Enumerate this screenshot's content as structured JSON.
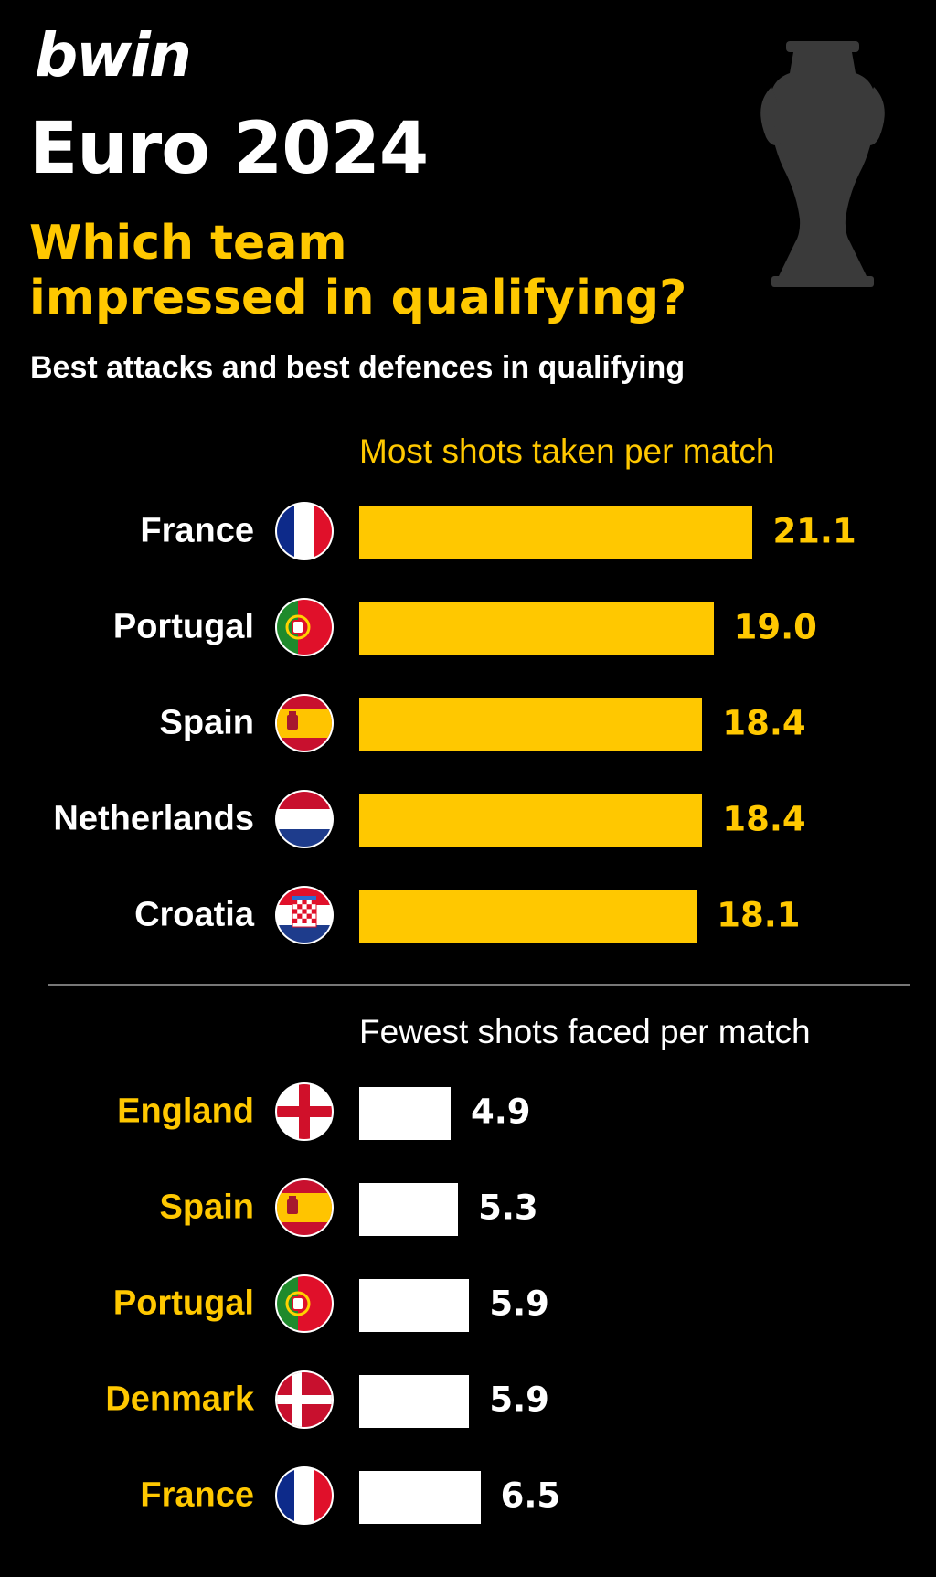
{
  "brand": {
    "logo": "bwin"
  },
  "header": {
    "title": "Euro 2024",
    "subtitle_line1": "Which team",
    "subtitle_line2": "impressed in qualifying?",
    "tagline": "Best attacks and best defences in qualifying"
  },
  "colors": {
    "accent": "#ffc800",
    "background": "#000000",
    "text": "#ffffff",
    "divider": "#777777"
  },
  "chart_data": [
    {
      "type": "bar",
      "orientation": "horizontal",
      "title": "Most shots taken per match",
      "categories": [
        "France",
        "Portugal",
        "Spain",
        "Netherlands",
        "Croatia"
      ],
      "value_labels": [
        "21.1",
        "19.0",
        "18.4",
        "18.4",
        "18.1"
      ],
      "values": [
        21.1,
        19.0,
        18.4,
        18.4,
        18.1
      ],
      "flags": [
        "france-flag-icon",
        "portugal-flag-icon",
        "spain-flag-icon",
        "netherlands-flag-icon",
        "croatia-flag-icon"
      ],
      "bar_color": "#ffc800",
      "grid": false
    },
    {
      "type": "bar",
      "orientation": "horizontal",
      "title": "Fewest shots faced per match",
      "categories": [
        "England",
        "Spain",
        "Portugal",
        "Denmark",
        "France"
      ],
      "value_labels": [
        "4.9",
        "5.3",
        "5.9",
        "5.9",
        "6.5"
      ],
      "values": [
        4.9,
        5.3,
        5.9,
        5.9,
        6.5
      ],
      "flags": [
        "england-flag-icon",
        "spain-flag-icon",
        "portugal-flag-icon",
        "denmark-flag-icon",
        "france-flag-icon"
      ],
      "bar_color": "#ffffff",
      "grid": false
    }
  ]
}
